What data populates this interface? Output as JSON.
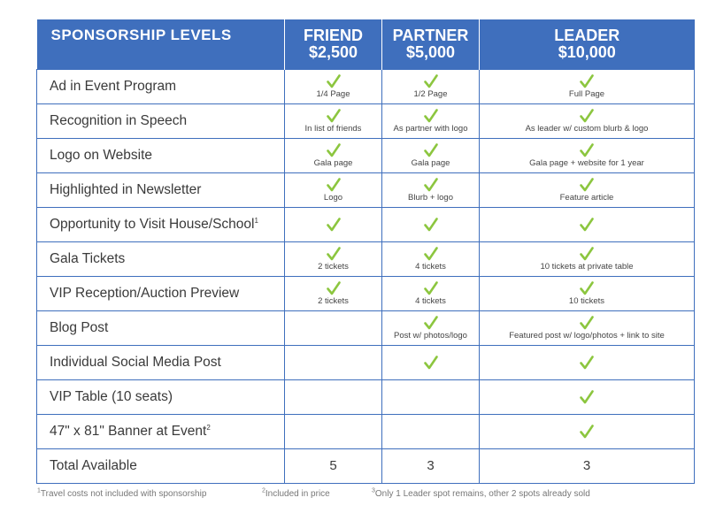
{
  "header": {
    "title": "SPONSORSHIP LEVELS",
    "levels": [
      {
        "name": "FRIEND",
        "price": "$2,500"
      },
      {
        "name": "PARTNER",
        "price": "$5,000"
      },
      {
        "name": "LEADER",
        "price": "$10,000"
      }
    ]
  },
  "rows": [
    {
      "feature": "Ad in Event Program",
      "cells": [
        {
          "check": true,
          "note": "1/4 Page"
        },
        {
          "check": true,
          "note": "1/2 Page"
        },
        {
          "check": true,
          "note": "Full Page"
        }
      ]
    },
    {
      "feature": "Recognition in Speech",
      "cells": [
        {
          "check": true,
          "note": "In list of friends"
        },
        {
          "check": true,
          "note": "As partner with logo"
        },
        {
          "check": true,
          "note": "As leader w/ custom blurb & logo"
        }
      ]
    },
    {
      "feature": "Logo on Website",
      "cells": [
        {
          "check": true,
          "note": "Gala page"
        },
        {
          "check": true,
          "note": "Gala page"
        },
        {
          "check": true,
          "note": "Gala page + website for 1 year"
        }
      ]
    },
    {
      "feature": "Highlighted in Newsletter",
      "cells": [
        {
          "check": true,
          "note": "Logo"
        },
        {
          "check": true,
          "note": "Blurb + logo"
        },
        {
          "check": true,
          "note": "Feature article"
        }
      ]
    },
    {
      "feature": "Opportunity to Visit House/School",
      "sup": "1",
      "cells": [
        {
          "check": true,
          "note": ""
        },
        {
          "check": true,
          "note": ""
        },
        {
          "check": true,
          "note": ""
        }
      ]
    },
    {
      "feature": "Gala Tickets",
      "cells": [
        {
          "check": true,
          "note": "2 tickets"
        },
        {
          "check": true,
          "note": "4 tickets"
        },
        {
          "check": true,
          "note": "10 tickets at private table"
        }
      ]
    },
    {
      "feature": "VIP Reception/Auction Preview",
      "cells": [
        {
          "check": true,
          "note": "2 tickets"
        },
        {
          "check": true,
          "note": "4 tickets"
        },
        {
          "check": true,
          "note": "10 tickets"
        }
      ]
    },
    {
      "feature": "Blog Post",
      "cells": [
        {
          "check": false,
          "note": ""
        },
        {
          "check": true,
          "note": "Post w/ photos/logo"
        },
        {
          "check": true,
          "note": "Featured post w/ logo/photos + link to site"
        }
      ]
    },
    {
      "feature": "Individual Social Media Post",
      "cells": [
        {
          "check": false,
          "note": ""
        },
        {
          "check": true,
          "note": ""
        },
        {
          "check": true,
          "note": ""
        }
      ]
    },
    {
      "feature": "VIP Table (10 seats)",
      "cells": [
        {
          "check": false,
          "note": ""
        },
        {
          "check": false,
          "note": ""
        },
        {
          "check": true,
          "note": ""
        }
      ]
    },
    {
      "feature": "47\" x 81\" Banner at Event",
      "sup": "2",
      "cells": [
        {
          "check": false,
          "note": ""
        },
        {
          "check": false,
          "note": ""
        },
        {
          "check": true,
          "note": ""
        }
      ]
    }
  ],
  "total": {
    "label": "Total Available",
    "values": [
      "5",
      "3",
      "3"
    ]
  },
  "footnotes": [
    {
      "mark": "1",
      "text": "Travel costs not included with sponsorship"
    },
    {
      "mark": "2",
      "text": "Included in price"
    },
    {
      "mark": "3",
      "text": "Only 1 Leader spot remains, other 2 spots already sold"
    }
  ],
  "colors": {
    "header_bg": "#3f6fbd",
    "check": "#8cc63f",
    "border": "#3f6fbd"
  }
}
